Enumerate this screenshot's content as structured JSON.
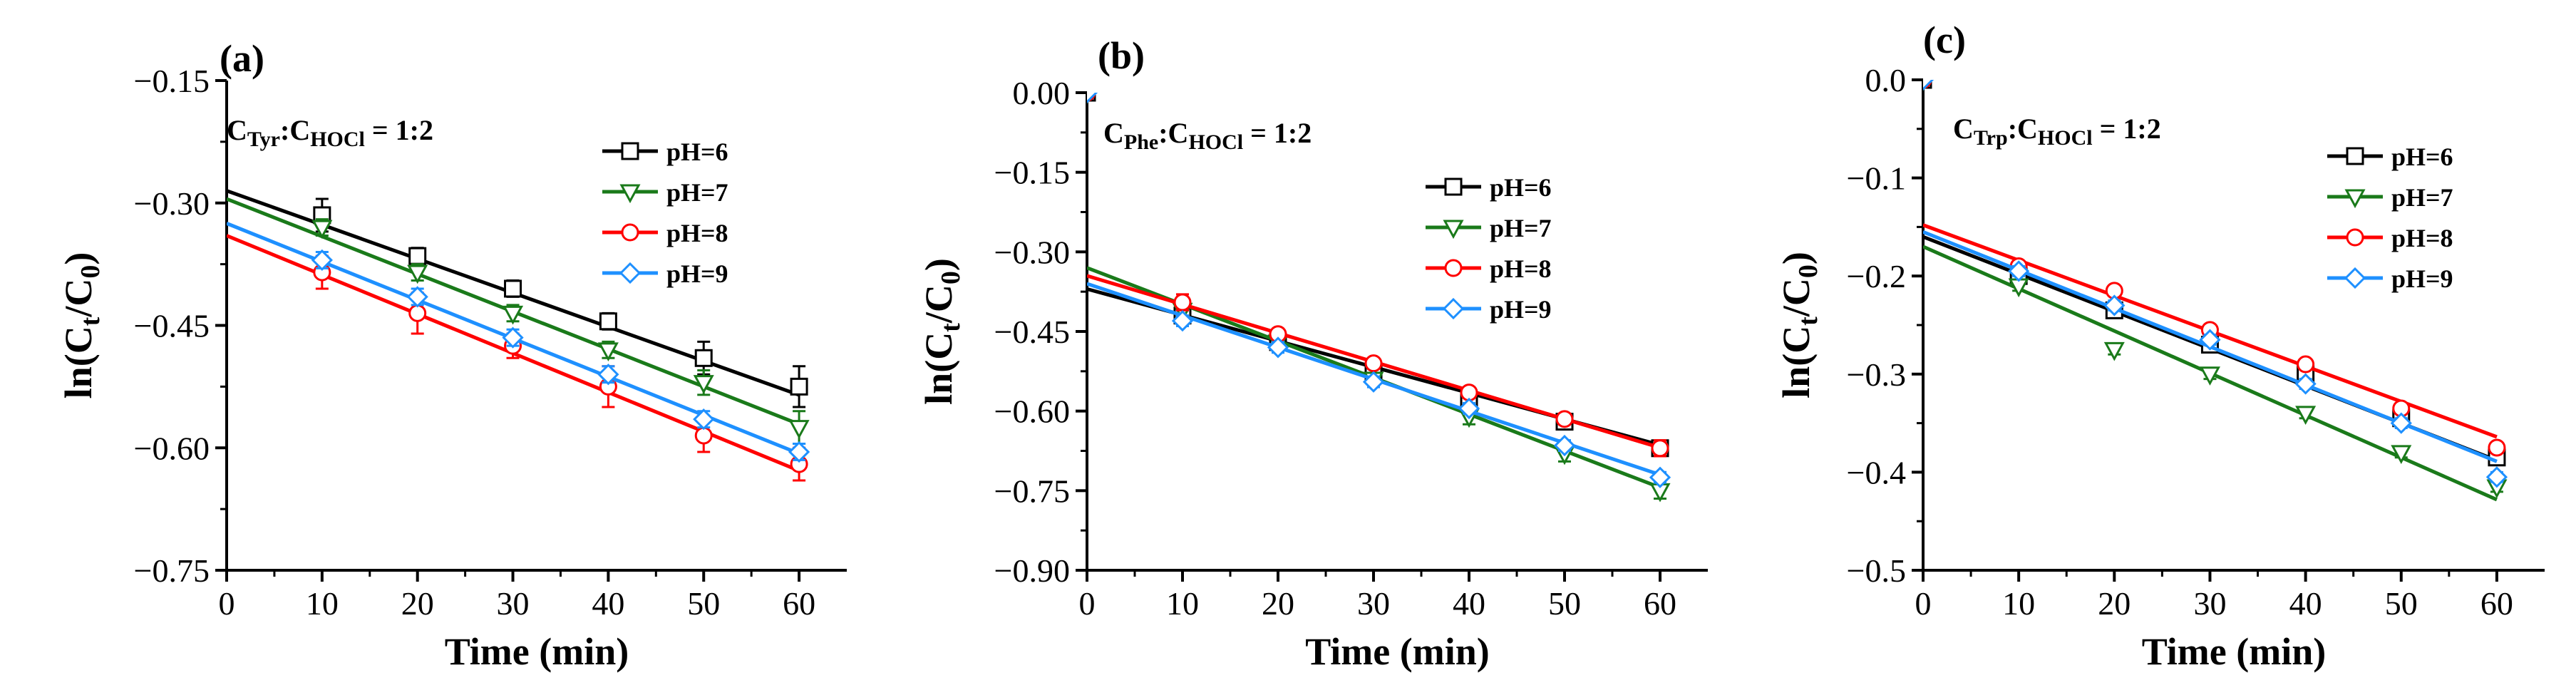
{
  "chart_data": [
    {
      "type": "line",
      "panel_label": "(a)",
      "annotation": {
        "main1": "C",
        "sub1": "Tyr",
        "mid": ":C",
        "sub2": "HOCl",
        "tail": " = 1:2"
      },
      "xlabel": "Time (min)",
      "ylabel": {
        "main": "ln(C",
        "sub1": "t",
        "mid": "/C",
        "sub2": "0",
        "tail": ")"
      },
      "xlim": [
        0,
        65
      ],
      "ylim": [
        -0.75,
        -0.15
      ],
      "x_ticks": [
        0,
        10,
        20,
        30,
        40,
        50,
        60
      ],
      "x_tick_labels": [
        "0",
        "10",
        "20",
        "30",
        "40",
        "50",
        "60"
      ],
      "y_ticks": [
        -0.75,
        -0.6,
        -0.45,
        -0.3,
        -0.15
      ],
      "y_tick_labels": [
        "−0.75",
        "−0.60",
        "−0.45",
        "−0.30",
        "−0.15"
      ],
      "legend_position": "top-right",
      "series": [
        {
          "name": "pH=6",
          "color": "#000000",
          "marker": "square",
          "x": [
            10,
            20,
            30,
            40,
            50,
            60
          ],
          "y": [
            -0.315,
            -0.365,
            -0.405,
            -0.445,
            -0.49,
            -0.525
          ],
          "err": [
            0.02,
            0.01,
            0.01,
            0.01,
            0.02,
            0.025
          ],
          "fit": {
            "intercept": -0.285,
            "slope": -0.00417
          }
        },
        {
          "name": "pH=7",
          "color": "#1a7a1a",
          "marker": "triangle-down",
          "x": [
            10,
            20,
            30,
            40,
            50,
            60
          ],
          "y": [
            -0.33,
            -0.385,
            -0.435,
            -0.48,
            -0.52,
            -0.575
          ],
          "err": [
            0.01,
            0.01,
            0.01,
            0.01,
            0.015,
            0.02
          ],
          "fit": {
            "intercept": -0.295,
            "slope": -0.0046
          }
        },
        {
          "name": "pH=8",
          "color": "#ff0000",
          "marker": "circle",
          "x": [
            10,
            20,
            30,
            40,
            50,
            60
          ],
          "y": [
            -0.385,
            -0.435,
            -0.475,
            -0.525,
            -0.585,
            -0.62
          ],
          "err": [
            0.02,
            0.025,
            0.015,
            0.025,
            0.02,
            0.02
          ],
          "fit": {
            "intercept": -0.34,
            "slope": -0.0048
          }
        },
        {
          "name": "pH=9",
          "color": "#1e90ff",
          "marker": "diamond",
          "x": [
            10,
            20,
            30,
            40,
            50,
            60
          ],
          "y": [
            -0.37,
            -0.415,
            -0.465,
            -0.51,
            -0.565,
            -0.605
          ],
          "err": [
            0.01,
            0.01,
            0.01,
            0.01,
            0.01,
            0.01
          ],
          "fit": {
            "intercept": -0.325,
            "slope": -0.0047
          }
        }
      ]
    },
    {
      "type": "line",
      "panel_label": "(b)",
      "annotation": {
        "main1": "C",
        "sub1": "Phe",
        "mid": ":C",
        "sub2": "HOCl",
        "tail": " = 1:2"
      },
      "xlabel": "Time (min)",
      "ylabel": {
        "main": "ln(C",
        "sub1": "t",
        "mid": "/C",
        "sub2": "0",
        "tail": ")"
      },
      "xlim": [
        0,
        65
      ],
      "ylim": [
        -0.9,
        0.0
      ],
      "x_ticks": [
        0,
        10,
        20,
        30,
        40,
        50,
        60
      ],
      "x_tick_labels": [
        "0",
        "10",
        "20",
        "30",
        "40",
        "50",
        "60"
      ],
      "y_ticks": [
        -0.9,
        -0.75,
        -0.6,
        -0.45,
        -0.3,
        -0.15,
        0.0
      ],
      "y_tick_labels": [
        "−0.90",
        "−0.75",
        "−0.60",
        "−0.45",
        "−0.30",
        "−0.15",
        "0.00"
      ],
      "legend_position": "top-right",
      "series": [
        {
          "name": "pH=6",
          "color": "#000000",
          "marker": "square",
          "x": [
            0,
            10,
            20,
            30,
            40,
            50,
            60
          ],
          "y": [
            0.0,
            -0.42,
            -0.47,
            -0.53,
            -0.58,
            -0.62,
            -0.67
          ],
          "err": [
            0,
            0.01,
            0.01,
            0.01,
            0.01,
            0.01,
            0.01
          ],
          "fit": {
            "intercept": -0.37,
            "slope": -0.0049
          }
        },
        {
          "name": "pH=7",
          "color": "#1a7a1a",
          "marker": "triangle-down",
          "x": [
            0,
            10,
            20,
            30,
            40,
            50,
            60
          ],
          "y": [
            0.0,
            -0.41,
            -0.47,
            -0.54,
            -0.61,
            -0.68,
            -0.75
          ],
          "err": [
            0,
            0.01,
            0.01,
            0.01,
            0.015,
            0.015,
            0.015
          ],
          "fit": {
            "intercept": -0.33,
            "slope": -0.0069
          }
        },
        {
          "name": "pH=8",
          "color": "#ff0000",
          "marker": "circle",
          "x": [
            0,
            10,
            20,
            30,
            40,
            50,
            60
          ],
          "y": [
            0.0,
            -0.395,
            -0.455,
            -0.51,
            -0.565,
            -0.615,
            -0.67
          ],
          "err": [
            0,
            0.015,
            0.01,
            0.01,
            0.01,
            0.01,
            0.015
          ],
          "fit": {
            "intercept": -0.345,
            "slope": -0.0054
          }
        },
        {
          "name": "pH=9",
          "color": "#1e90ff",
          "marker": "diamond",
          "x": [
            0,
            10,
            20,
            30,
            40,
            50,
            60
          ],
          "y": [
            0.0,
            -0.43,
            -0.48,
            -0.545,
            -0.595,
            -0.665,
            -0.725
          ],
          "err": [
            0,
            0.01,
            0.01,
            0.01,
            0.01,
            0.01,
            0.01
          ],
          "fit": {
            "intercept": -0.36,
            "slope": -0.006
          }
        }
      ]
    },
    {
      "type": "line",
      "panel_label": "(c)",
      "annotation": {
        "main1": "C",
        "sub1": "Trp",
        "mid": ":C",
        "sub2": "HOCl",
        "tail": " = 1:2"
      },
      "xlabel": "Time (min)",
      "ylabel": {
        "main": "ln(C",
        "sub1": "t",
        "mid": "/C",
        "sub2": "0",
        "tail": ")"
      },
      "xlim": [
        0,
        65
      ],
      "ylim": [
        -0.5,
        0.0
      ],
      "x_ticks": [
        0,
        10,
        20,
        30,
        40,
        50,
        60
      ],
      "x_tick_labels": [
        "0",
        "10",
        "20",
        "30",
        "40",
        "50",
        "60"
      ],
      "y_ticks": [
        -0.5,
        -0.4,
        -0.3,
        -0.2,
        -0.1,
        0.0
      ],
      "y_tick_labels": [
        "−0.5",
        "−0.4",
        "−0.3",
        "−0.2",
        "−0.1",
        "0.0"
      ],
      "legend_position": "top-right",
      "series": [
        {
          "name": "pH=6",
          "color": "#000000",
          "marker": "square",
          "x": [
            0,
            10,
            20,
            30,
            40,
            50,
            60
          ],
          "y": [
            0.0,
            -0.2,
            -0.235,
            -0.27,
            -0.3,
            -0.345,
            -0.385
          ],
          "err": [
            0,
            0.005,
            0.005,
            0.005,
            0.005,
            0.005,
            0.005
          ],
          "fit": {
            "intercept": -0.16,
            "slope": -0.0038
          }
        },
        {
          "name": "pH=7",
          "color": "#1a7a1a",
          "marker": "triangle-down",
          "x": [
            0,
            10,
            20,
            30,
            40,
            50,
            60
          ],
          "y": [
            0.0,
            -0.21,
            -0.275,
            -0.3,
            -0.34,
            -0.38,
            -0.415
          ],
          "err": [
            0,
            0.005,
            0.005,
            0.005,
            0.005,
            0.005,
            0.005
          ],
          "fit": {
            "intercept": -0.17,
            "slope": -0.0043
          }
        },
        {
          "name": "pH=8",
          "color": "#ff0000",
          "marker": "circle",
          "x": [
            0,
            10,
            20,
            30,
            40,
            50,
            60
          ],
          "y": [
            0.0,
            -0.19,
            -0.215,
            -0.255,
            -0.29,
            -0.335,
            -0.375
          ],
          "err": [
            0,
            0.005,
            0.005,
            0.005,
            0.005,
            0.005,
            0.005
          ],
          "fit": {
            "intercept": -0.148,
            "slope": -0.0036
          }
        },
        {
          "name": "pH=9",
          "color": "#1e90ff",
          "marker": "diamond",
          "x": [
            0,
            10,
            20,
            30,
            40,
            50,
            60
          ],
          "y": [
            0.0,
            -0.195,
            -0.23,
            -0.265,
            -0.31,
            -0.35,
            -0.405
          ],
          "err": [
            0,
            0.005,
            0.005,
            0.005,
            0.005,
            0.005,
            0.005
          ],
          "fit": {
            "intercept": -0.155,
            "slope": -0.0039
          }
        }
      ]
    }
  ]
}
